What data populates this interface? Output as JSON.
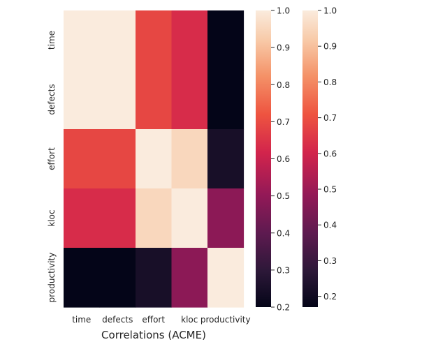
{
  "chart_data": {
    "type": "heatmap",
    "title": "",
    "xlabel": "Correlations (ACME)",
    "ylabel": "",
    "x_categories": [
      "time",
      "defects",
      "effort",
      "kloc",
      "productivity"
    ],
    "y_categories": [
      "time",
      "defects",
      "effort",
      "kloc",
      "productivity"
    ],
    "values": [
      [
        1.0,
        1.0,
        0.68,
        0.62,
        0.17
      ],
      [
        1.0,
        1.0,
        0.68,
        0.62,
        0.17
      ],
      [
        0.68,
        0.68,
        1.0,
        0.95,
        0.22
      ],
      [
        0.62,
        0.62,
        0.95,
        1.0,
        0.47
      ],
      [
        0.17,
        0.17,
        0.22,
        0.47,
        1.0
      ]
    ],
    "colormap": "rocket",
    "grid": false,
    "colorbars": [
      {
        "vmin": 0.2,
        "vmax": 1.0,
        "ticks": [
          "0.2",
          "0.3",
          "0.4",
          "0.5",
          "0.6",
          "0.7",
          "0.8",
          "0.9",
          "1.0"
        ]
      },
      {
        "vmin": 0.17,
        "vmax": 1.0,
        "ticks": [
          "0.2",
          "0.3",
          "0.4",
          "0.5",
          "0.6",
          "0.7",
          "0.8",
          "0.9",
          "1.0"
        ]
      }
    ]
  }
}
